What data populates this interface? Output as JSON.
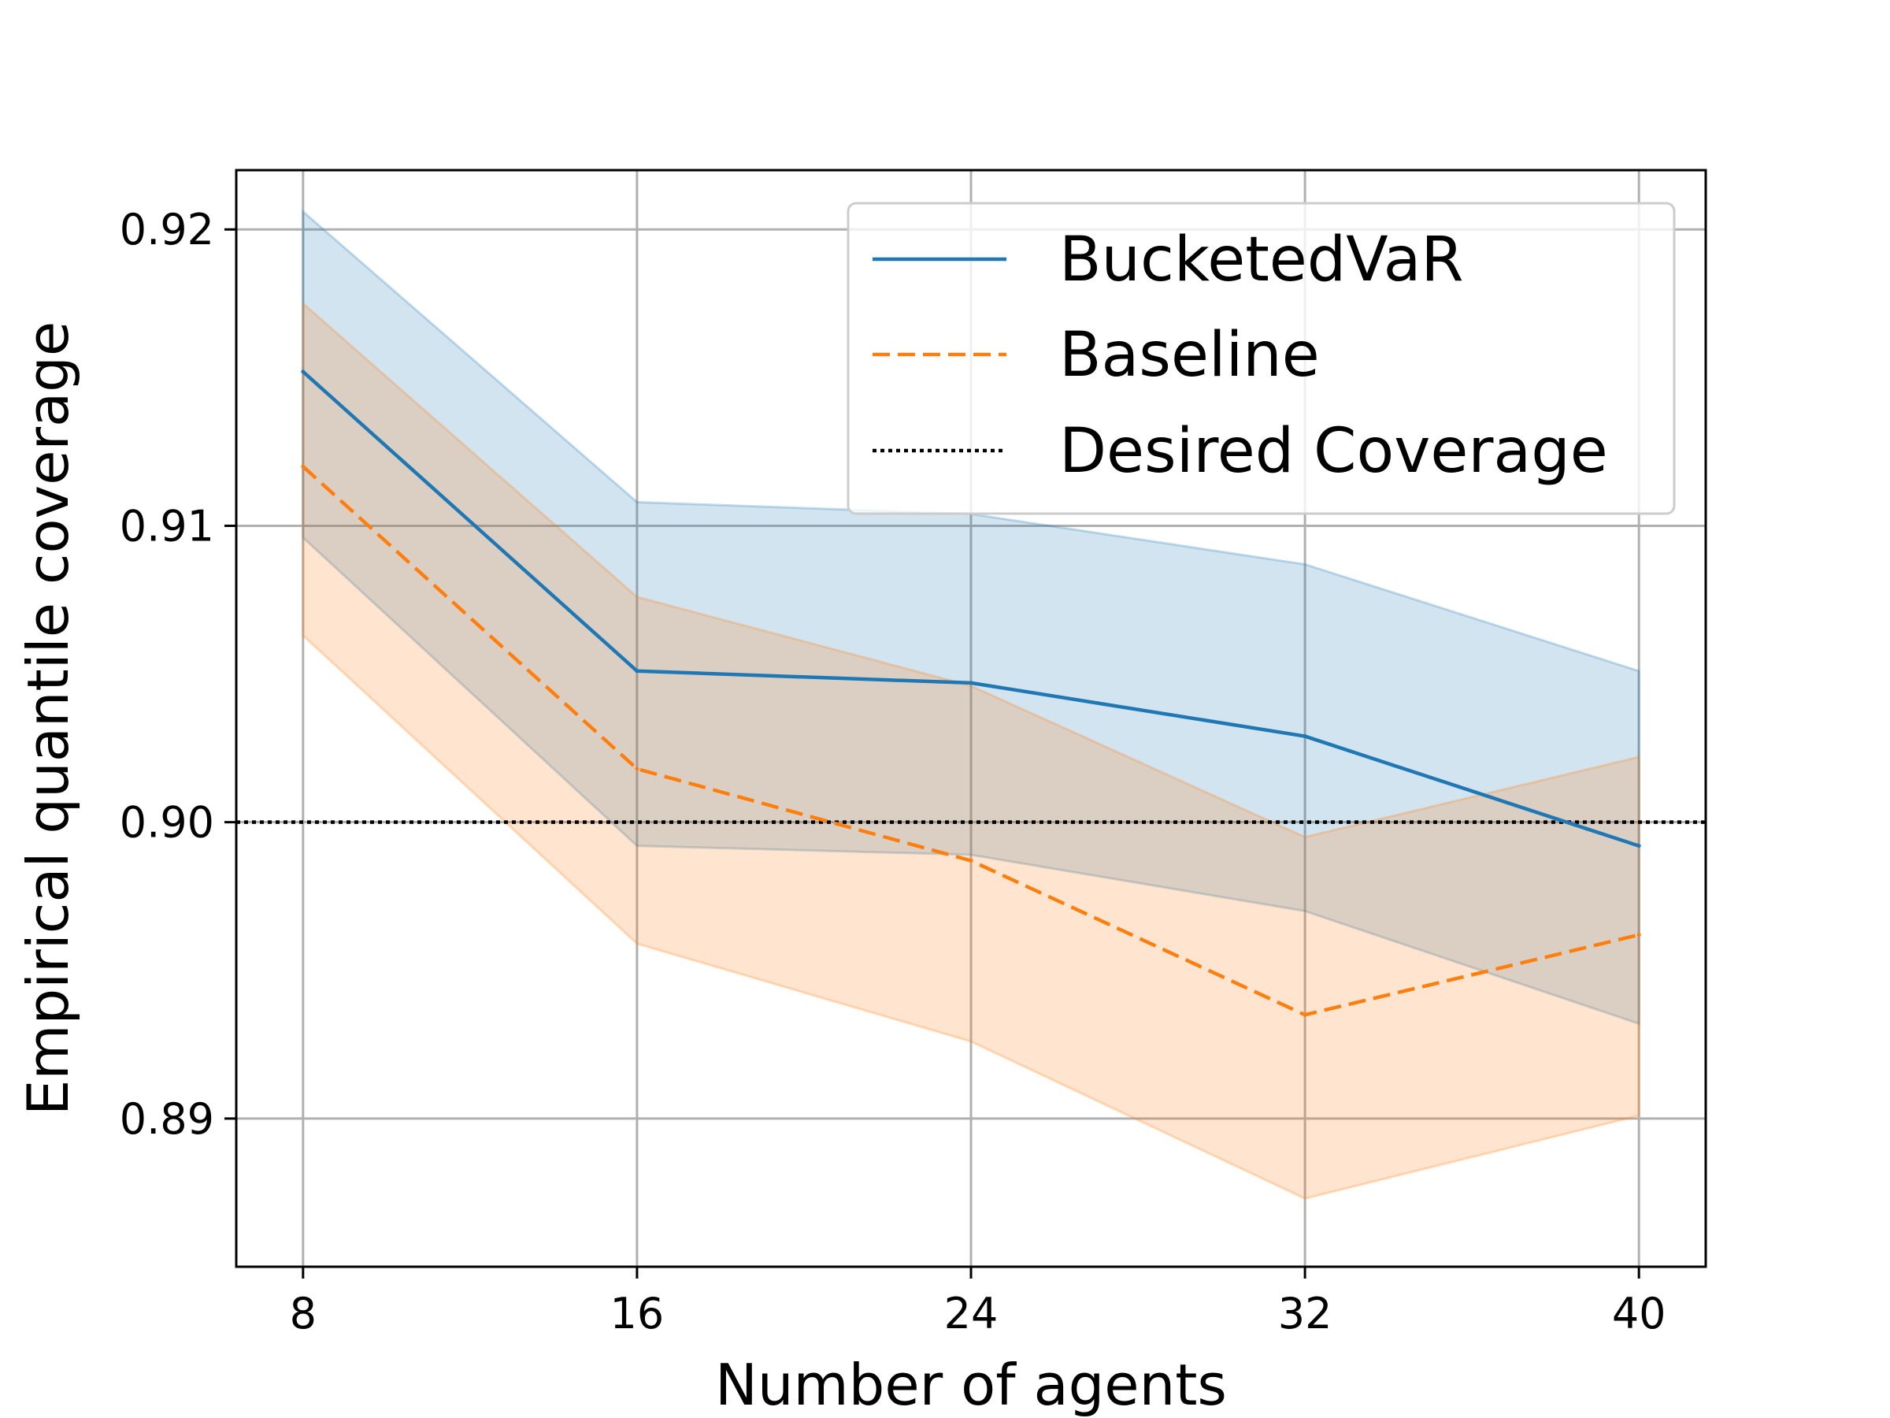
{
  "chart_data": {
    "type": "line",
    "title": "",
    "xlabel": "Number of agents",
    "ylabel": "Empirical quantile coverage",
    "x": [
      8,
      16,
      24,
      32,
      40
    ],
    "xticks": [
      "8",
      "16",
      "24",
      "32",
      "40"
    ],
    "yticks": [
      0.89,
      0.9,
      0.91,
      0.92
    ],
    "ytick_labels": [
      "0.89",
      "0.90",
      "0.91",
      "0.92"
    ],
    "xlim": [
      6.4,
      41.6
    ],
    "ylim": [
      0.885,
      0.922
    ],
    "grid": true,
    "legend_position": "top-right",
    "series": [
      {
        "name": "BucketedVaR",
        "style": "solid",
        "color": "#1f77b4",
        "values": [
          0.9152,
          0.9051,
          0.9047,
          0.9029,
          0.8992
        ],
        "band_upper": [
          0.9206,
          0.9108,
          0.9104,
          0.9087,
          0.9051
        ],
        "band_lower": [
          0.9096,
          0.8992,
          0.8989,
          0.897,
          0.8932
        ]
      },
      {
        "name": "Baseline",
        "style": "dashed",
        "color": "#ff7f0e",
        "values": [
          0.912,
          0.9018,
          0.8987,
          0.8935,
          0.8962
        ],
        "band_upper": [
          0.9175,
          0.9076,
          0.9046,
          0.8995,
          0.9022
        ],
        "band_lower": [
          0.9063,
          0.8959,
          0.8926,
          0.8873,
          0.8901
        ]
      }
    ],
    "reference_line": {
      "name": "Desired Coverage",
      "y": 0.9,
      "style": "dotted",
      "color": "#000000"
    }
  }
}
